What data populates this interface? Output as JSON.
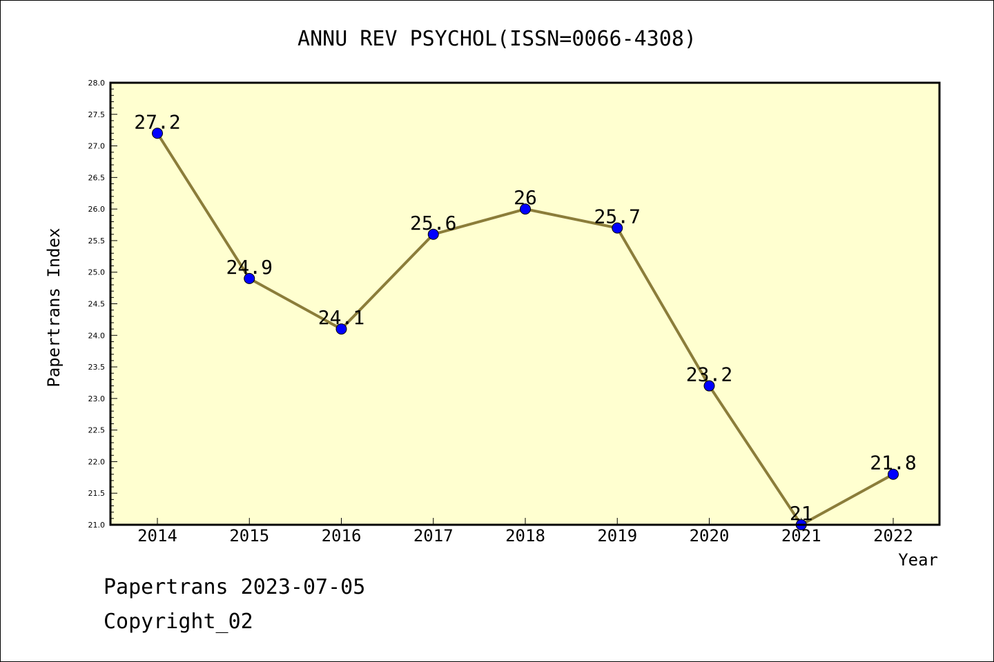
{
  "chart_data": {
    "type": "line",
    "title": "ANNU REV PSYCHOL(ISSN=0066-4308)",
    "xlabel": "Year",
    "ylabel": "Papertrans Index",
    "x": [
      "2014",
      "2015",
      "2016",
      "2017",
      "2018",
      "2019",
      "2020",
      "2021",
      "2022"
    ],
    "series": [
      {
        "values": [
          27.2,
          24.9,
          24.1,
          25.6,
          26,
          25.7,
          23.2,
          21,
          21.8
        ],
        "data_labels": [
          "27.2",
          "24.9",
          "24.1",
          "25.6",
          "26",
          "25.7",
          "23.2",
          "21",
          "21.8"
        ]
      }
    ],
    "ylim": [
      21.0,
      28.0
    ],
    "y_ticks": [
      "21.0",
      "21.5",
      "22.0",
      "22.5",
      "23.0",
      "23.5",
      "24.0",
      "24.5",
      "25.0",
      "25.5",
      "26.0",
      "26.5",
      "27.0",
      "27.5",
      "28.0"
    ],
    "grid": false,
    "colors": {
      "plot_background": "#ffffd0",
      "line": "#8b7d3a",
      "marker": "#0000ff"
    }
  },
  "footer": {
    "line1": "Papertrans 2023-07-05",
    "line2": "Copyright_02"
  }
}
